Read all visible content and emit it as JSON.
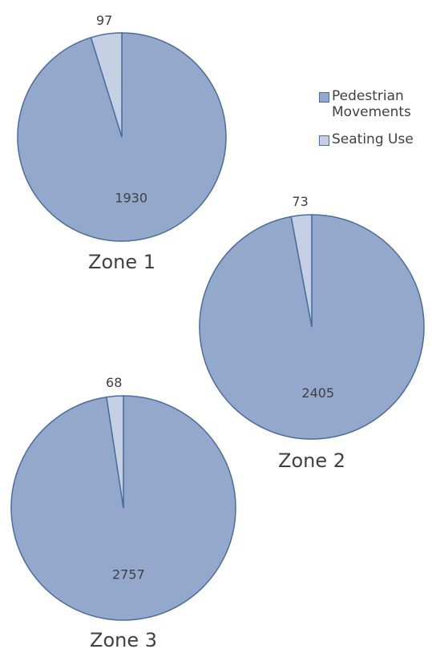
{
  "chart_data": [
    {
      "type": "pie",
      "title": "Zone 1",
      "values": [
        1930,
        97
      ]
    },
    {
      "type": "pie",
      "title": "Zone 2",
      "values": [
        2405,
        73
      ]
    },
    {
      "type": "pie",
      "title": "Zone 3",
      "values": [
        2757,
        68
      ]
    }
  ],
  "legend": {
    "labels": [
      "Pedestrian Movements",
      "Seating Use"
    ],
    "colors": [
      "#94a8cb",
      "#c5d0e4"
    ],
    "edge": "#4a6d9d"
  }
}
